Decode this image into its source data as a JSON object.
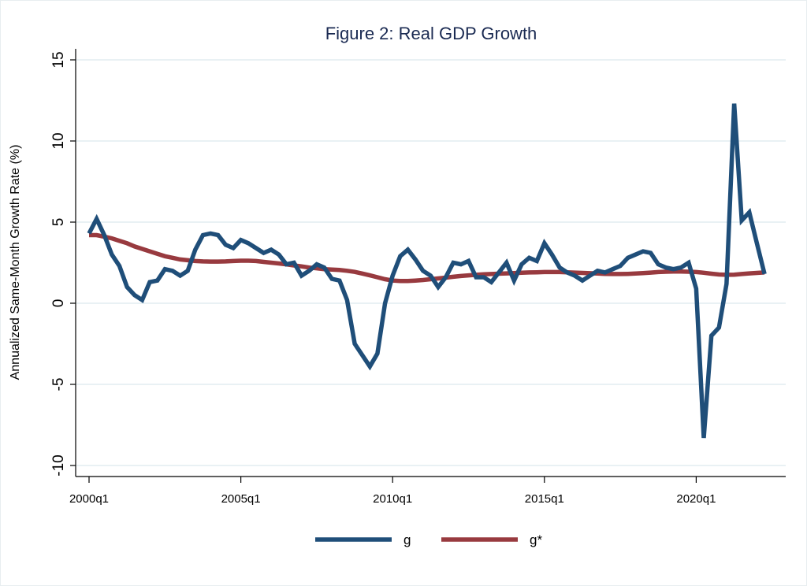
{
  "chart_data": {
    "type": "line",
    "title": "Figure 2: Real GDP Growth",
    "xlabel": "",
    "ylabel": "Annualized Same-Month Growth Rate (%)",
    "ylim": [
      -10,
      15
    ],
    "yticks": [
      -10,
      -5,
      0,
      5,
      10,
      15
    ],
    "ytick_labels": [
      "-10",
      "-5",
      "0",
      "5",
      "10",
      "15"
    ],
    "xticks": [
      "2000q1",
      "2005q1",
      "2010q1",
      "2015q1",
      "2020q1"
    ],
    "xtick_index": [
      0,
      20,
      40,
      60,
      80
    ],
    "grid": true,
    "legend_position": "bottom",
    "x_start": "2000q1",
    "x": [
      "2000q1",
      "2000q2",
      "2000q3",
      "2000q4",
      "2001q1",
      "2001q2",
      "2001q3",
      "2001q4",
      "2002q1",
      "2002q2",
      "2002q3",
      "2002q4",
      "2003q1",
      "2003q2",
      "2003q3",
      "2003q4",
      "2004q1",
      "2004q2",
      "2004q3",
      "2004q4",
      "2005q1",
      "2005q2",
      "2005q3",
      "2005q4",
      "2006q1",
      "2006q2",
      "2006q3",
      "2006q4",
      "2007q1",
      "2007q2",
      "2007q3",
      "2007q4",
      "2008q1",
      "2008q2",
      "2008q3",
      "2008q4",
      "2009q1",
      "2009q2",
      "2009q3",
      "2009q4",
      "2010q1",
      "2010q2",
      "2010q3",
      "2010q4",
      "2011q1",
      "2011q2",
      "2011q3",
      "2011q4",
      "2012q1",
      "2012q2",
      "2012q3",
      "2012q4",
      "2013q1",
      "2013q2",
      "2013q3",
      "2013q4",
      "2014q1",
      "2014q2",
      "2014q3",
      "2014q4",
      "2015q1",
      "2015q2",
      "2015q3",
      "2015q4",
      "2016q1",
      "2016q2",
      "2016q3",
      "2016q4",
      "2017q1",
      "2017q2",
      "2017q3",
      "2017q4",
      "2018q1",
      "2018q2",
      "2018q3",
      "2018q4",
      "2019q1",
      "2019q2",
      "2019q3",
      "2019q4",
      "2020q1",
      "2020q2",
      "2020q3",
      "2020q4",
      "2021q1",
      "2021q2",
      "2021q3",
      "2021q4",
      "2022q1",
      "2022q2"
    ],
    "series": [
      {
        "name": "g",
        "color": "#1f4e79",
        "values": [
          4.3,
          5.2,
          4.2,
          3.0,
          2.3,
          1.0,
          0.5,
          0.2,
          1.3,
          1.4,
          2.1,
          2.0,
          1.7,
          2.0,
          3.3,
          4.2,
          4.3,
          4.2,
          3.6,
          3.4,
          3.9,
          3.7,
          3.4,
          3.1,
          3.3,
          3.0,
          2.4,
          2.5,
          1.7,
          2.0,
          2.4,
          2.2,
          1.5,
          1.4,
          0.2,
          -2.5,
          -3.2,
          -3.9,
          -3.1,
          0.0,
          1.7,
          2.9,
          3.3,
          2.7,
          2.0,
          1.7,
          1.0,
          1.6,
          2.5,
          2.4,
          2.6,
          1.6,
          1.6,
          1.3,
          1.9,
          2.5,
          1.4,
          2.4,
          2.8,
          2.6,
          3.7,
          3.0,
          2.2,
          1.9,
          1.7,
          1.4,
          1.7,
          2.0,
          1.9,
          2.1,
          2.3,
          2.8,
          3.0,
          3.2,
          3.1,
          2.4,
          2.2,
          2.1,
          2.2,
          2.5,
          0.9,
          -8.3,
          -2.0,
          -1.5,
          1.2,
          12.3,
          5.1,
          5.6,
          3.7,
          1.8
        ]
      },
      {
        "name": "g*",
        "color": "#983a3f",
        "values": [
          4.2,
          4.2,
          4.1,
          4.0,
          3.85,
          3.7,
          3.5,
          3.35,
          3.2,
          3.05,
          2.9,
          2.8,
          2.7,
          2.65,
          2.6,
          2.58,
          2.57,
          2.57,
          2.58,
          2.6,
          2.62,
          2.62,
          2.6,
          2.55,
          2.5,
          2.45,
          2.4,
          2.33,
          2.27,
          2.2,
          2.15,
          2.1,
          2.08,
          2.05,
          2.0,
          1.93,
          1.83,
          1.72,
          1.6,
          1.48,
          1.4,
          1.37,
          1.37,
          1.4,
          1.43,
          1.48,
          1.53,
          1.58,
          1.63,
          1.68,
          1.72,
          1.75,
          1.78,
          1.8,
          1.82,
          1.84,
          1.86,
          1.88,
          1.9,
          1.91,
          1.92,
          1.92,
          1.92,
          1.91,
          1.89,
          1.87,
          1.85,
          1.83,
          1.81,
          1.8,
          1.8,
          1.81,
          1.83,
          1.86,
          1.89,
          1.92,
          1.94,
          1.95,
          1.95,
          1.94,
          1.92,
          1.88,
          1.82,
          1.77,
          1.75,
          1.76,
          1.8,
          1.84,
          1.87,
          1.9
        ]
      }
    ],
    "legend": [
      {
        "label": "g",
        "color": "#1f4e79"
      },
      {
        "label": "g*",
        "color": "#983a3f"
      }
    ]
  }
}
